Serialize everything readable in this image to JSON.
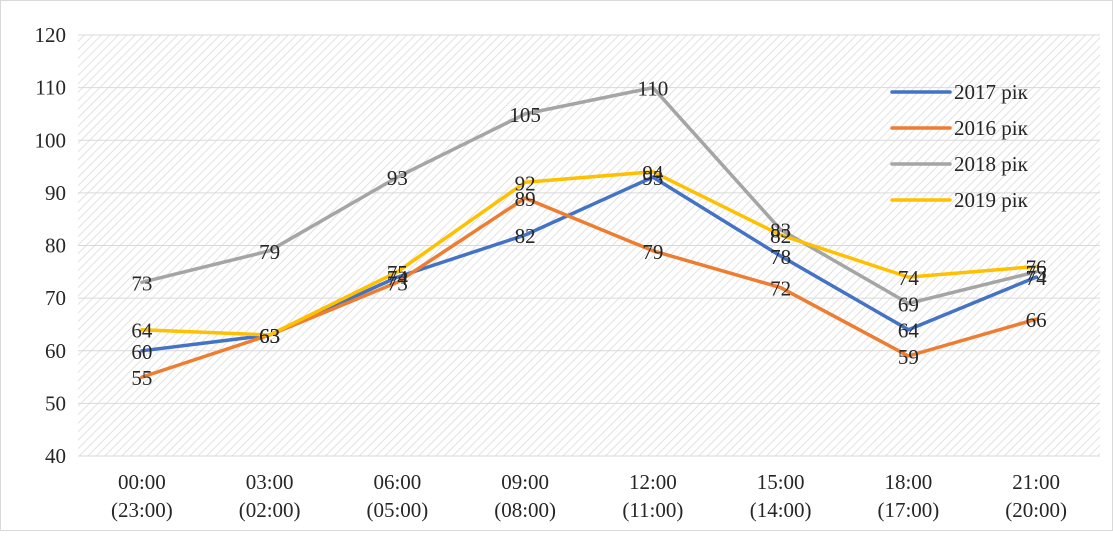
{
  "chart_data": {
    "type": "line",
    "title": "",
    "xlabel": "",
    "ylabel": "",
    "ylim": [
      40,
      120
    ],
    "yticks": [
      40,
      50,
      60,
      70,
      80,
      90,
      100,
      110,
      120
    ],
    "grid": true,
    "legend_position": "top-right",
    "categories": [
      [
        "00:00",
        "(23:00)"
      ],
      [
        "03:00",
        "(02:00)"
      ],
      [
        "06:00",
        "(05:00)"
      ],
      [
        "09:00",
        "(08:00)"
      ],
      [
        "12:00",
        "(11:00)"
      ],
      [
        "15:00",
        "(14:00)"
      ],
      [
        "18:00",
        "(17:00)"
      ],
      [
        "21:00",
        "(20:00)"
      ]
    ],
    "series": [
      {
        "name": "2017 рік",
        "color": "#4472C4",
        "values": [
          60,
          63,
          74,
          82,
          93,
          78,
          64,
          74
        ]
      },
      {
        "name": "2016 рік",
        "color": "#ED7D31",
        "values": [
          55,
          63,
          73,
          89,
          79,
          72,
          59,
          66
        ]
      },
      {
        "name": "2018 рік",
        "color": "#A5A5A5",
        "values": [
          73,
          79,
          93,
          105,
          110,
          83,
          69,
          75
        ]
      },
      {
        "name": "2019 рік",
        "color": "#FFC000",
        "values": [
          64,
          63,
          75,
          92,
          94,
          82,
          74,
          76
        ]
      }
    ]
  }
}
